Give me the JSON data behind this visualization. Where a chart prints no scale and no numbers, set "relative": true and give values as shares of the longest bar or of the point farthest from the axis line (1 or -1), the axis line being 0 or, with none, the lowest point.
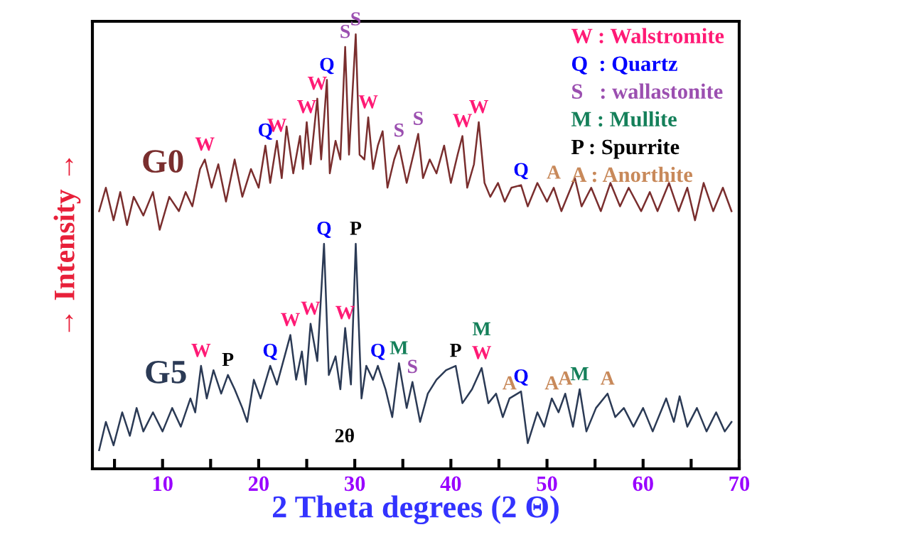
{
  "chart_data": {
    "type": "line",
    "relative": true,
    "xlabel": "2 Theta degrees (2 Θ)",
    "ylabel": "→ Intensity →",
    "annotations": [
      "W : Walstromite",
      "Q  : Quartz",
      "S   : wallastonite",
      "M : Mullite",
      "P : Spurrite",
      "A : Anorthite",
      "2θ",
      {
        "text": "W",
        "x": 14.4,
        "y": 0.712
      },
      {
        "text": "Q",
        "x": 20.7,
        "y": 0.744
      },
      {
        "text": "W",
        "x": 21.9,
        "y": 0.755
      },
      {
        "text": "W",
        "x": 25.0,
        "y": 0.798
      },
      {
        "text": "W",
        "x": 26.1,
        "y": 0.852
      },
      {
        "text": "Q",
        "x": 27.1,
        "y": 0.895
      },
      {
        "text": "S",
        "x": 29.0,
        "y": 0.971
      },
      {
        "text": "S",
        "x": 30.1,
        "y": 1.0
      },
      {
        "text": "W",
        "x": 31.4,
        "y": 0.809
      },
      {
        "text": "S",
        "x": 34.6,
        "y": 0.744
      },
      {
        "text": "S",
        "x": 36.6,
        "y": 0.771
      },
      {
        "text": "W",
        "x": 41.2,
        "y": 0.766
      },
      {
        "text": "W",
        "x": 42.9,
        "y": 0.798
      },
      {
        "text": "Q",
        "x": 47.3,
        "y": 0.653
      },
      {
        "text": "A",
        "x": 50.7,
        "y": 0.647
      },
      {
        "text": "W",
        "x": 14.0,
        "y": 0.237
      },
      {
        "text": "P",
        "x": 16.8,
        "y": 0.216
      },
      {
        "text": "Q",
        "x": 21.2,
        "y": 0.237
      },
      {
        "text": "W",
        "x": 23.3,
        "y": 0.308
      },
      {
        "text": "W",
        "x": 25.4,
        "y": 0.334
      },
      {
        "text": "Q",
        "x": 26.8,
        "y": 0.518
      },
      {
        "text": "W",
        "x": 29.0,
        "y": 0.324
      },
      {
        "text": "P",
        "x": 30.1,
        "y": 0.518
      },
      {
        "text": "Q",
        "x": 32.4,
        "y": 0.237
      },
      {
        "text": "M",
        "x": 34.6,
        "y": 0.243
      },
      {
        "text": "S",
        "x": 36.0,
        "y": 0.2
      },
      {
        "text": "P",
        "x": 40.5,
        "y": 0.237
      },
      {
        "text": "W",
        "x": 43.2,
        "y": 0.232
      },
      {
        "text": "M",
        "x": 43.2,
        "y": 0.232
      },
      {
        "text": "A",
        "x": 46.1,
        "y": 0.162
      },
      {
        "text": "Q",
        "x": 47.3,
        "y": 0.178
      },
      {
        "text": "A",
        "x": 50.5,
        "y": 0.162
      },
      {
        "text": "A",
        "x": 51.9,
        "y": 0.173
      },
      {
        "text": "M",
        "x": 53.4,
        "y": 0.183
      },
      {
        "text": "A",
        "x": 56.3,
        "y": 0.173
      }
    ],
    "xlim": [
      2.7,
      70
    ],
    "xticks": [
      {
        "value": 5,
        "label": null
      },
      10,
      {
        "value": 15,
        "label": null
      },
      20,
      {
        "value": 25,
        "label": null
      },
      30,
      {
        "value": 35,
        "label": null
      },
      40,
      {
        "value": 45,
        "label": null
      },
      50,
      {
        "value": 55,
        "label": null
      },
      60,
      {
        "value": 65,
        "label": null
      },
      70
    ],
    "grid": false,
    "marker": "none",
    "line_style": "solid",
    "series": [
      {
        "name": "G0",
        "color": "#7a2e2e",
        "x": [
          3.4,
          4.1,
          4.9,
          5.6,
          6.3,
          7.0,
          8.0,
          9.0,
          9.7,
          10.7,
          11.7,
          12.4,
          13.1,
          13.9,
          14.4,
          15.1,
          15.8,
          16.6,
          17.5,
          18.3,
          19.2,
          20.0,
          20.7,
          21.2,
          21.9,
          22.4,
          22.9,
          23.6,
          24.3,
          24.6,
          25.0,
          25.4,
          26.1,
          26.5,
          27.1,
          27.4,
          28.0,
          28.5,
          29.0,
          29.4,
          30.1,
          30.5,
          31.0,
          31.4,
          31.9,
          32.4,
          32.9,
          33.4,
          34.1,
          34.6,
          35.4,
          36.1,
          36.6,
          37.1,
          37.8,
          38.5,
          39.3,
          40.0,
          40.7,
          41.2,
          41.7,
          42.4,
          42.9,
          43.5,
          44.1,
          44.9,
          45.6,
          46.3,
          47.3,
          48.0,
          49.0,
          50.0,
          50.7,
          51.5,
          52.9,
          53.6,
          54.6,
          55.6,
          56.6,
          57.6,
          58.5,
          59.8,
          60.7,
          61.5,
          62.7,
          63.7,
          64.6,
          65.4,
          66.3,
          67.3,
          68.3,
          69.2
        ],
        "values": [
          0.593,
          0.647,
          0.572,
          0.637,
          0.561,
          0.626,
          0.583,
          0.637,
          0.55,
          0.626,
          0.593,
          0.637,
          0.604,
          0.69,
          0.712,
          0.647,
          0.701,
          0.615,
          0.712,
          0.626,
          0.69,
          0.647,
          0.744,
          0.658,
          0.755,
          0.669,
          0.788,
          0.68,
          0.766,
          0.69,
          0.798,
          0.701,
          0.852,
          0.712,
          0.895,
          0.68,
          0.755,
          0.712,
          0.971,
          0.723,
          1.0,
          0.723,
          0.712,
          0.809,
          0.69,
          0.744,
          0.777,
          0.647,
          0.712,
          0.744,
          0.658,
          0.723,
          0.771,
          0.669,
          0.712,
          0.68,
          0.744,
          0.658,
          0.723,
          0.766,
          0.647,
          0.701,
          0.798,
          0.658,
          0.626,
          0.658,
          0.615,
          0.647,
          0.653,
          0.604,
          0.658,
          0.615,
          0.647,
          0.593,
          0.669,
          0.604,
          0.647,
          0.593,
          0.658,
          0.604,
          0.647,
          0.593,
          0.637,
          0.593,
          0.658,
          0.593,
          0.647,
          0.572,
          0.658,
          0.593,
          0.647,
          0.593
        ]
      },
      {
        "name": "G5",
        "color": "#2b3a55",
        "x": [
          3.4,
          4.1,
          4.9,
          5.8,
          6.6,
          7.3,
          8.0,
          9.0,
          10.0,
          11.0,
          11.9,
          12.9,
          13.4,
          14.0,
          14.6,
          15.3,
          16.1,
          16.8,
          17.5,
          18.3,
          18.8,
          19.5,
          20.2,
          21.2,
          21.9,
          22.7,
          23.3,
          23.9,
          24.5,
          24.9,
          25.4,
          26.1,
          26.8,
          27.3,
          28.0,
          28.5,
          29.0,
          29.6,
          30.1,
          30.7,
          31.2,
          31.9,
          32.4,
          33.2,
          33.9,
          34.6,
          35.4,
          36.0,
          36.8,
          37.6,
          38.5,
          39.5,
          40.5,
          41.2,
          42.2,
          43.2,
          43.9,
          44.7,
          45.4,
          46.1,
          47.3,
          48.0,
          49.0,
          49.7,
          50.5,
          51.2,
          51.9,
          52.7,
          53.4,
          54.1,
          55.1,
          56.3,
          57.1,
          58.0,
          59.0,
          60.0,
          61.0,
          62.4,
          63.2,
          63.8,
          64.6,
          65.6,
          66.6,
          67.6,
          68.5,
          69.2
        ],
        "values": [
          0.043,
          0.108,
          0.054,
          0.13,
          0.076,
          0.14,
          0.086,
          0.13,
          0.086,
          0.14,
          0.097,
          0.162,
          0.13,
          0.237,
          0.162,
          0.227,
          0.173,
          0.216,
          0.183,
          0.14,
          0.108,
          0.205,
          0.162,
          0.237,
          0.194,
          0.259,
          0.308,
          0.205,
          0.27,
          0.194,
          0.334,
          0.248,
          0.518,
          0.216,
          0.259,
          0.183,
          0.324,
          0.194,
          0.518,
          0.162,
          0.237,
          0.205,
          0.237,
          0.183,
          0.119,
          0.243,
          0.14,
          0.2,
          0.108,
          0.173,
          0.205,
          0.227,
          0.237,
          0.151,
          0.183,
          0.232,
          0.151,
          0.173,
          0.119,
          0.162,
          0.178,
          0.059,
          0.13,
          0.097,
          0.162,
          0.13,
          0.173,
          0.097,
          0.183,
          0.086,
          0.14,
          0.173,
          0.119,
          0.14,
          0.097,
          0.14,
          0.086,
          0.162,
          0.108,
          0.167,
          0.097,
          0.14,
          0.086,
          0.13,
          0.086,
          0.108
        ]
      }
    ]
  }
}
